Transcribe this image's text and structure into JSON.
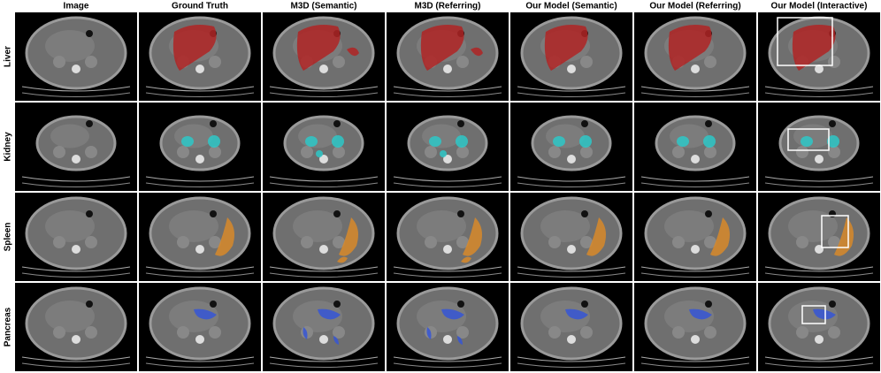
{
  "header": {
    "columns": [
      "Image",
      "Ground Truth",
      "M3D (Semantic)",
      "M3D (Referring)",
      "Our Model (Semantic)",
      "Our Model (Referring)",
      "Our Model (Interactive)"
    ]
  },
  "rows": [
    "Liver",
    "Kidney",
    "Spleen",
    "Pancreas"
  ]
}
